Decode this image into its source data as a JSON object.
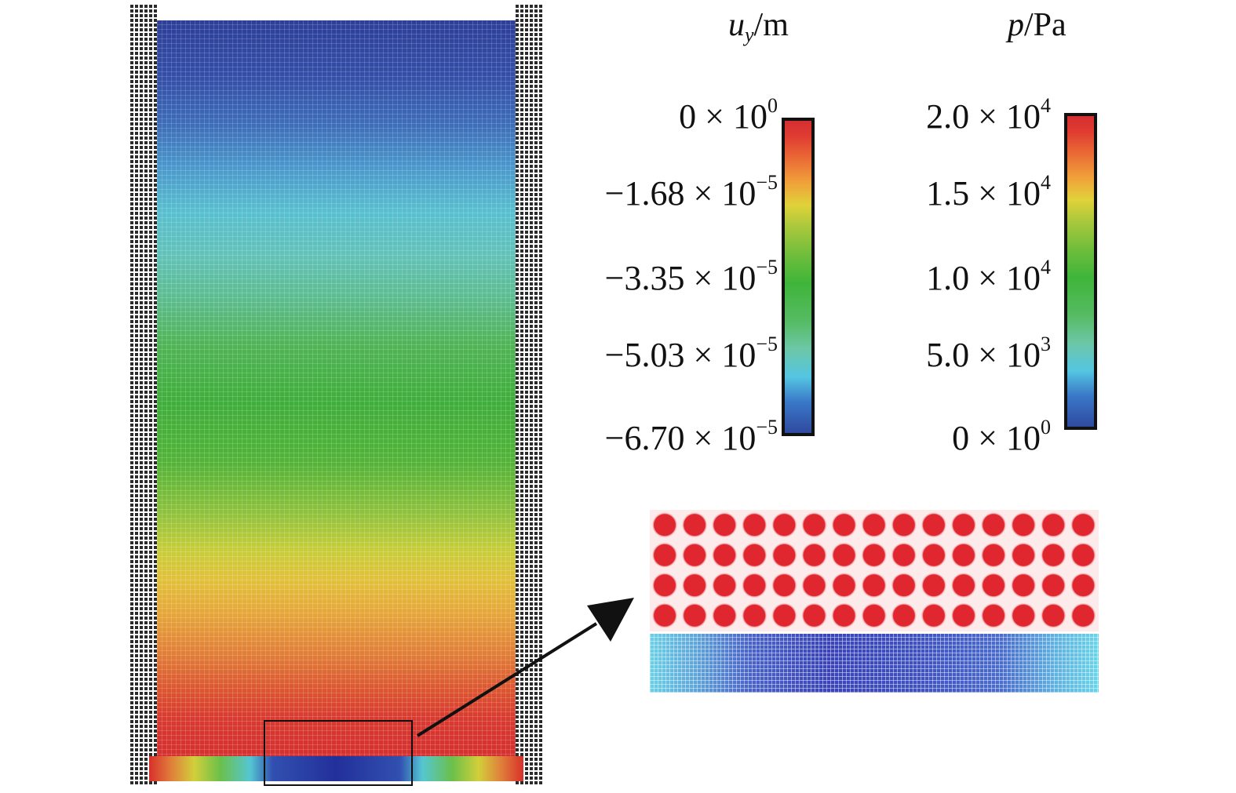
{
  "displacement_legend": {
    "symbol": "u",
    "subscript": "y",
    "unit": "/m",
    "ticks": [
      {
        "mantissa": "0",
        "exponent": "0"
      },
      {
        "mantissa": "−1.68",
        "exponent": "−5"
      },
      {
        "mantissa": "−3.35",
        "exponent": "−5"
      },
      {
        "mantissa": "−5.03",
        "exponent": "−5"
      },
      {
        "mantissa": "−6.70",
        "exponent": "−5"
      }
    ]
  },
  "pressure_legend": {
    "symbol": "p",
    "unit": "/Pa",
    "ticks": [
      {
        "mantissa": "2.0",
        "exponent": "4"
      },
      {
        "mantissa": "1.5",
        "exponent": "4"
      },
      {
        "mantissa": "1.0",
        "exponent": "4"
      },
      {
        "mantissa": "5.0",
        "exponent": "3"
      },
      {
        "mantissa": "0",
        "exponent": "0"
      }
    ]
  },
  "times_sign": "×",
  "base": "10",
  "colors": {
    "particle": "#e0262f",
    "wall_particles": "#2a2a2a",
    "arrow": "#111111"
  }
}
